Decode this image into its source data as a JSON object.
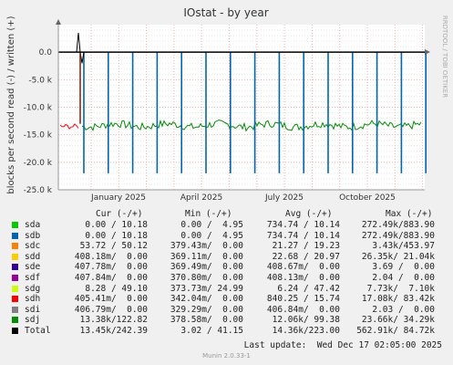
{
  "chart_data": {
    "type": "line",
    "title": "IOstat - by year",
    "ylabel": "blocks per second read (-) / written (+)",
    "side_label": "RRDTOOL / TOBI OETIKER",
    "ylim": [
      -25000,
      5000
    ],
    "y_ticks": [
      {
        "value": 0,
        "label": "0.0"
      },
      {
        "value": -5000,
        "label": "-5.0 k"
      },
      {
        "value": -10000,
        "label": "-10.0 k"
      },
      {
        "value": -15000,
        "label": "-15.0 k"
      },
      {
        "value": -20000,
        "label": "-20.0 k"
      },
      {
        "value": -25000,
        "label": "-25.0 k"
      }
    ],
    "x_ticks": [
      "January 2025",
      "April 2025",
      "July 2025",
      "October 2025"
    ],
    "grid": true,
    "series": [
      {
        "name": "sda",
        "color": "#00cc00"
      },
      {
        "name": "sdb",
        "color": "#0066b3"
      },
      {
        "name": "sdc",
        "color": "#ff8000"
      },
      {
        "name": "sdd",
        "color": "#ffcc00"
      },
      {
        "name": "sde",
        "color": "#330099"
      },
      {
        "name": "sdf",
        "color": "#990099"
      },
      {
        "name": "sdg",
        "color": "#ccff00"
      },
      {
        "name": "sdh",
        "color": "#ff0000"
      },
      {
        "name": "sdi",
        "color": "#808080"
      },
      {
        "name": "sdj",
        "color": "#008f00"
      },
      {
        "name": "Total",
        "color": "#000000"
      }
    ],
    "spikes_sdb_read": [
      -22000,
      -22000,
      -22000,
      -22000,
      -22000,
      -22000,
      -22000,
      -22000,
      -22000,
      -22000,
      -22000,
      -22000,
      -22000,
      -22000,
      -22000
    ],
    "sdj_read_baseline": -13300,
    "sdh_read_start": -13500,
    "total_write_peak": 3500
  },
  "legend": {
    "headers": {
      "cur": "Cur (-/+)",
      "min": "Min (-/+)",
      "avg": "Avg (-/+)",
      "max": "Max (-/+)"
    },
    "rows": [
      {
        "name": "sda",
        "cur": "0.00 / 10.18",
        "min": "0.00 /  4.95",
        "avg": "734.74 / 10.14",
        "max": "272.49k/883.90",
        "color": "#00cc00"
      },
      {
        "name": "sdb",
        "cur": "0.00 / 10.18",
        "min": "0.00 /  4.95",
        "avg": "734.74 / 10.14",
        "max": "272.49k/883.90",
        "color": "#0066b3"
      },
      {
        "name": "sdc",
        "cur": "53.72 / 50.12",
        "min": "379.43m/  0.00",
        "avg": "21.27 / 19.23",
        "max": "3.43k/453.97",
        "color": "#ff8000"
      },
      {
        "name": "sdd",
        "cur": "408.18m/  0.00",
        "min": "369.11m/  0.00",
        "avg": "22.68 / 20.97",
        "max": "26.35k/ 21.04k",
        "color": "#ffcc00"
      },
      {
        "name": "sde",
        "cur": "407.78m/  0.00",
        "min": "369.49m/  0.00",
        "avg": "408.67m/  0.00",
        "max": "3.69 /  0.00",
        "color": "#330099"
      },
      {
        "name": "sdf",
        "cur": "407.84m/  0.00",
        "min": "370.80m/  0.00",
        "avg": "408.13m/  0.00",
        "max": "2.04 /  0.00",
        "color": "#990099"
      },
      {
        "name": "sdg",
        "cur": "8.28 / 49.10",
        "min": "373.73m/ 24.99",
        "avg": "6.24 / 47.42",
        "max": "7.73k/  7.10k",
        "color": "#ccff00"
      },
      {
        "name": "sdh",
        "cur": "405.41m/  0.00",
        "min": "342.04m/  0.00",
        "avg": "840.25 / 15.74",
        "max": "17.08k/ 83.42k",
        "color": "#ff0000"
      },
      {
        "name": "sdi",
        "cur": "406.79m/  0.00",
        "min": "329.29m/  0.00",
        "avg": "406.84m/  0.00",
        "max": "2.03 /  0.00",
        "color": "#808080"
      },
      {
        "name": "sdj",
        "cur": "13.38k/122.82",
        "min": "378.58m/  0.00",
        "avg": "12.06k/ 99.38",
        "max": "23.66k/ 34.29k",
        "color": "#008f00"
      },
      {
        "name": "Total",
        "cur": "13.45k/242.39",
        "min": "3.02 / 41.15",
        "avg": "14.36k/223.00",
        "max": "562.91k/ 84.72k",
        "color": "#000000"
      }
    ]
  },
  "footer": {
    "last_update": "Last update:  Wed Dec 17 02:05:00 2025",
    "version": "Munin 2.0.33-1"
  }
}
